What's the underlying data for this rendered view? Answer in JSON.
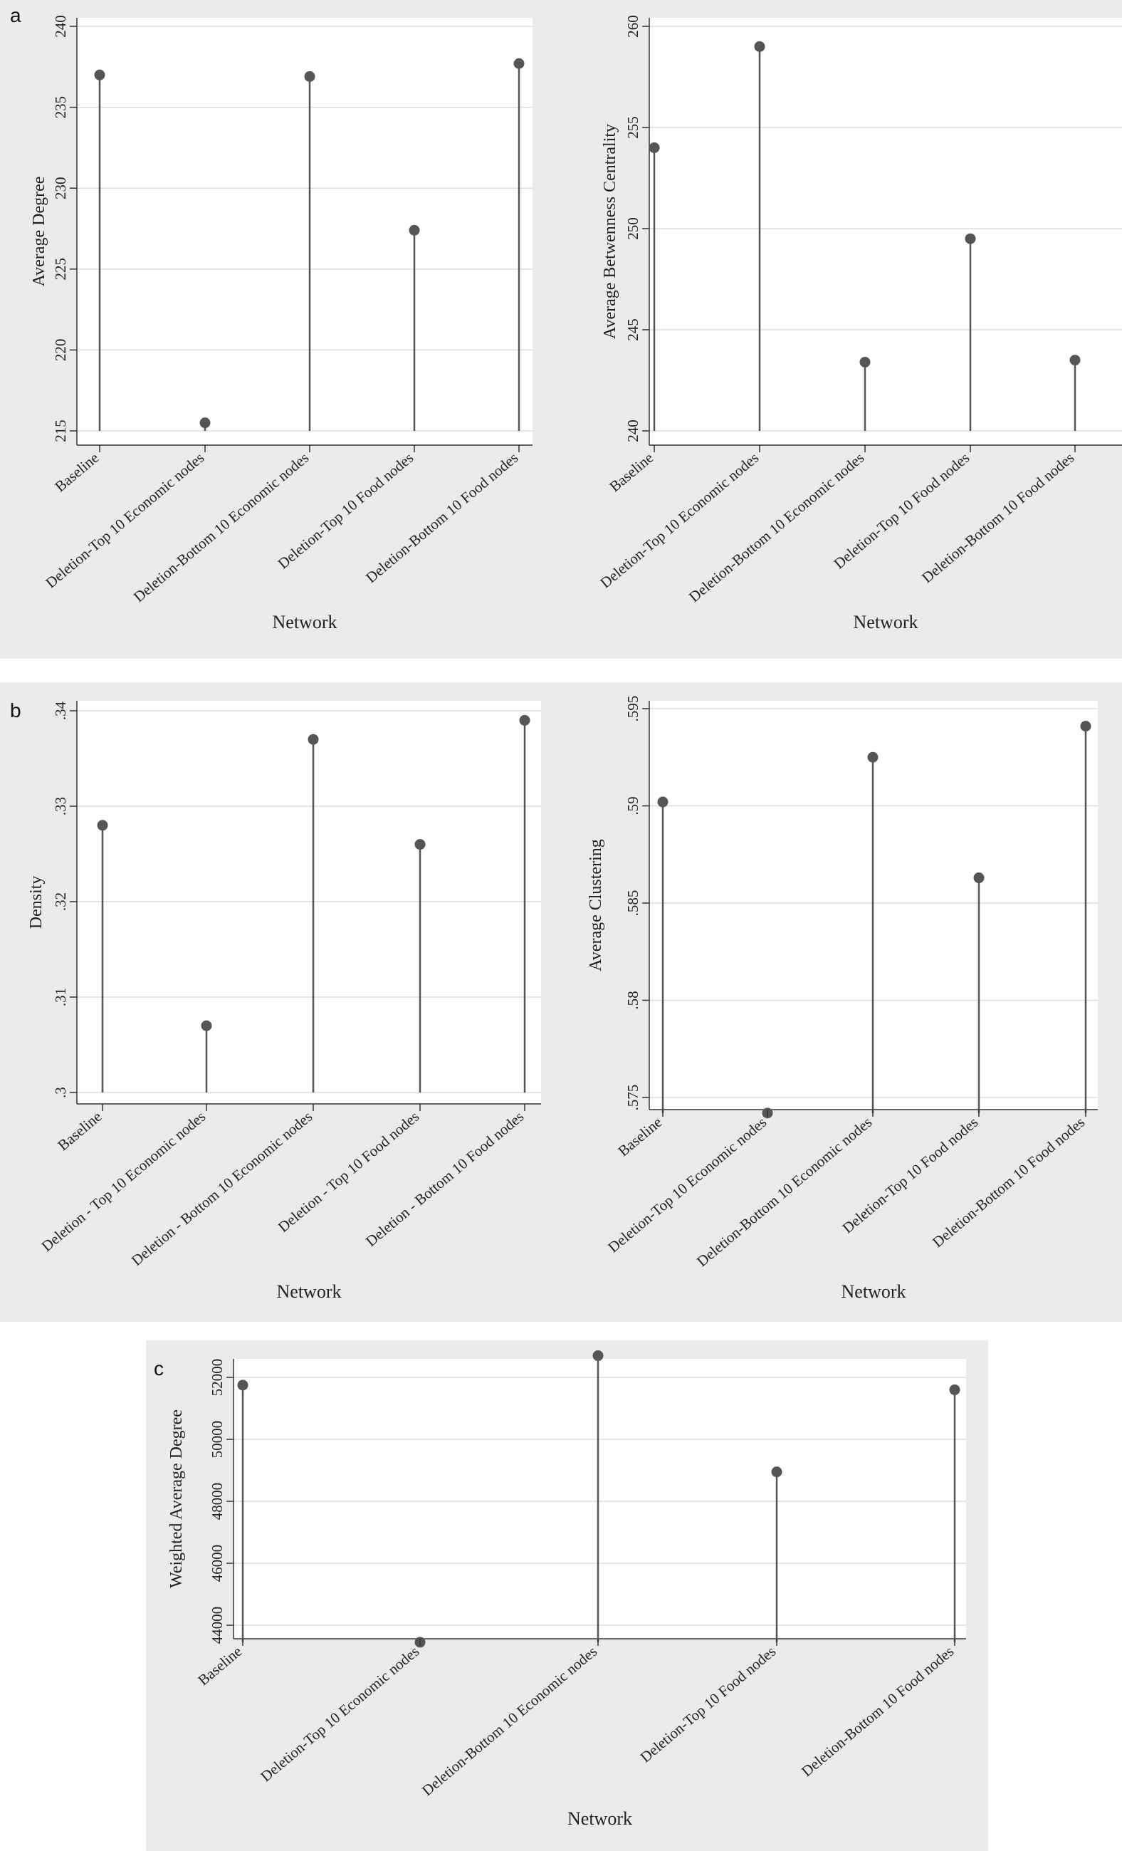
{
  "panels": {
    "a": {
      "letter": "a"
    },
    "b": {
      "letter": "b"
    },
    "c": {
      "letter": "c"
    }
  },
  "colors": {
    "panel_bg": "#ebebeb",
    "plot_bg": "#ffffff",
    "mark": "#555555",
    "grid": "#dddddd"
  },
  "chart_data": [
    {
      "id": "a1",
      "type": "lollipop",
      "panel": "a",
      "categories": [
        "Baseline",
        "Deletion-Top 10 Economic nodes",
        "Deletion-Bottom 10 Economic nodes",
        "Deletion-Top 10 Food nodes",
        "Deletion-Bottom 10 Food nodes"
      ],
      "values": [
        237.0,
        215.5,
        236.9,
        227.4,
        237.7
      ],
      "baseline": 215,
      "ylim": [
        215,
        240
      ],
      "yticks": [
        215,
        220,
        225,
        230,
        235,
        240
      ],
      "ytick_labels": [
        "215",
        "220",
        "225",
        "230",
        "235",
        "240"
      ],
      "ylabel": "Average Degree",
      "xlabel": "Network",
      "grid": true
    },
    {
      "id": "a2",
      "type": "lollipop",
      "panel": "a",
      "categories": [
        "Baseline",
        "Deletion-Top 10 Economic nodes",
        "Deletion-Bottom 10 Economic nodes",
        "Deletion-Top 10 Food nodes",
        "Deletion-Bottom 10 Food nodes"
      ],
      "values": [
        254.0,
        259.0,
        243.4,
        249.5,
        243.5
      ],
      "baseline": 240,
      "ylim": [
        240,
        260
      ],
      "yticks": [
        240,
        245,
        250,
        255,
        260
      ],
      "ytick_labels": [
        "240",
        "245",
        "250",
        "255",
        "260"
      ],
      "ylabel": "Average Betwenness Centrality",
      "xlabel": "Network",
      "grid": true
    },
    {
      "id": "b1",
      "type": "lollipop",
      "panel": "b",
      "categories": [
        "Baseline",
        "Deletion - Top 10 Economic nodes",
        "Deletion - Bottom 10 Economic nodes",
        "Deletion - Top 10 Food nodes",
        "Deletion - Bottom 10 Food nodes"
      ],
      "values": [
        0.328,
        0.307,
        0.337,
        0.326,
        0.339
      ],
      "baseline": 0.3,
      "ylim": [
        0.3,
        0.34
      ],
      "yticks": [
        0.3,
        0.31,
        0.32,
        0.33,
        0.34
      ],
      "ytick_labels": [
        ".3",
        ".31",
        ".32",
        ".33",
        ".34"
      ],
      "ylabel": "Density",
      "xlabel": "Network",
      "grid": true
    },
    {
      "id": "b2",
      "type": "lollipop",
      "panel": "b",
      "categories": [
        "Baseline",
        "Deletion-Top 10 Economic nodes",
        "Deletion-Bottom 10 Economic nodes",
        "Deletion-Top 10 Food nodes",
        "Deletion-Bottom 10 Food nodes"
      ],
      "values": [
        0.5902,
        0.5742,
        0.5925,
        0.5863,
        0.5941
      ],
      "baseline": 0.5742,
      "ylim": [
        0.575,
        0.595
      ],
      "yticks": [
        0.575,
        0.58,
        0.585,
        0.59,
        0.595
      ],
      "ytick_labels": [
        ".575",
        ".58",
        ".585",
        ".59",
        ".595"
      ],
      "ylabel": "Average Clustering",
      "xlabel": "Network",
      "grid": true
    },
    {
      "id": "c1",
      "type": "lollipop",
      "panel": "c",
      "categories": [
        "Baseline",
        "Deletion-Top 10 Economic nodes",
        "Deletion-Bottom 10 Economic nodes",
        "Deletion-Top 10 Food nodes",
        "Deletion-Bottom 10 Food nodes"
      ],
      "values": [
        51750,
        43450,
        52700,
        48950,
        51600
      ],
      "baseline": 43450,
      "ylim": [
        44000,
        52000
      ],
      "yticks": [
        44000,
        46000,
        48000,
        50000,
        52000
      ],
      "ytick_labels": [
        "44000",
        "46000",
        "48000",
        "50000",
        "52000"
      ],
      "ylabel": "Weighted Average Degree",
      "xlabel": "Network",
      "grid": true
    }
  ]
}
